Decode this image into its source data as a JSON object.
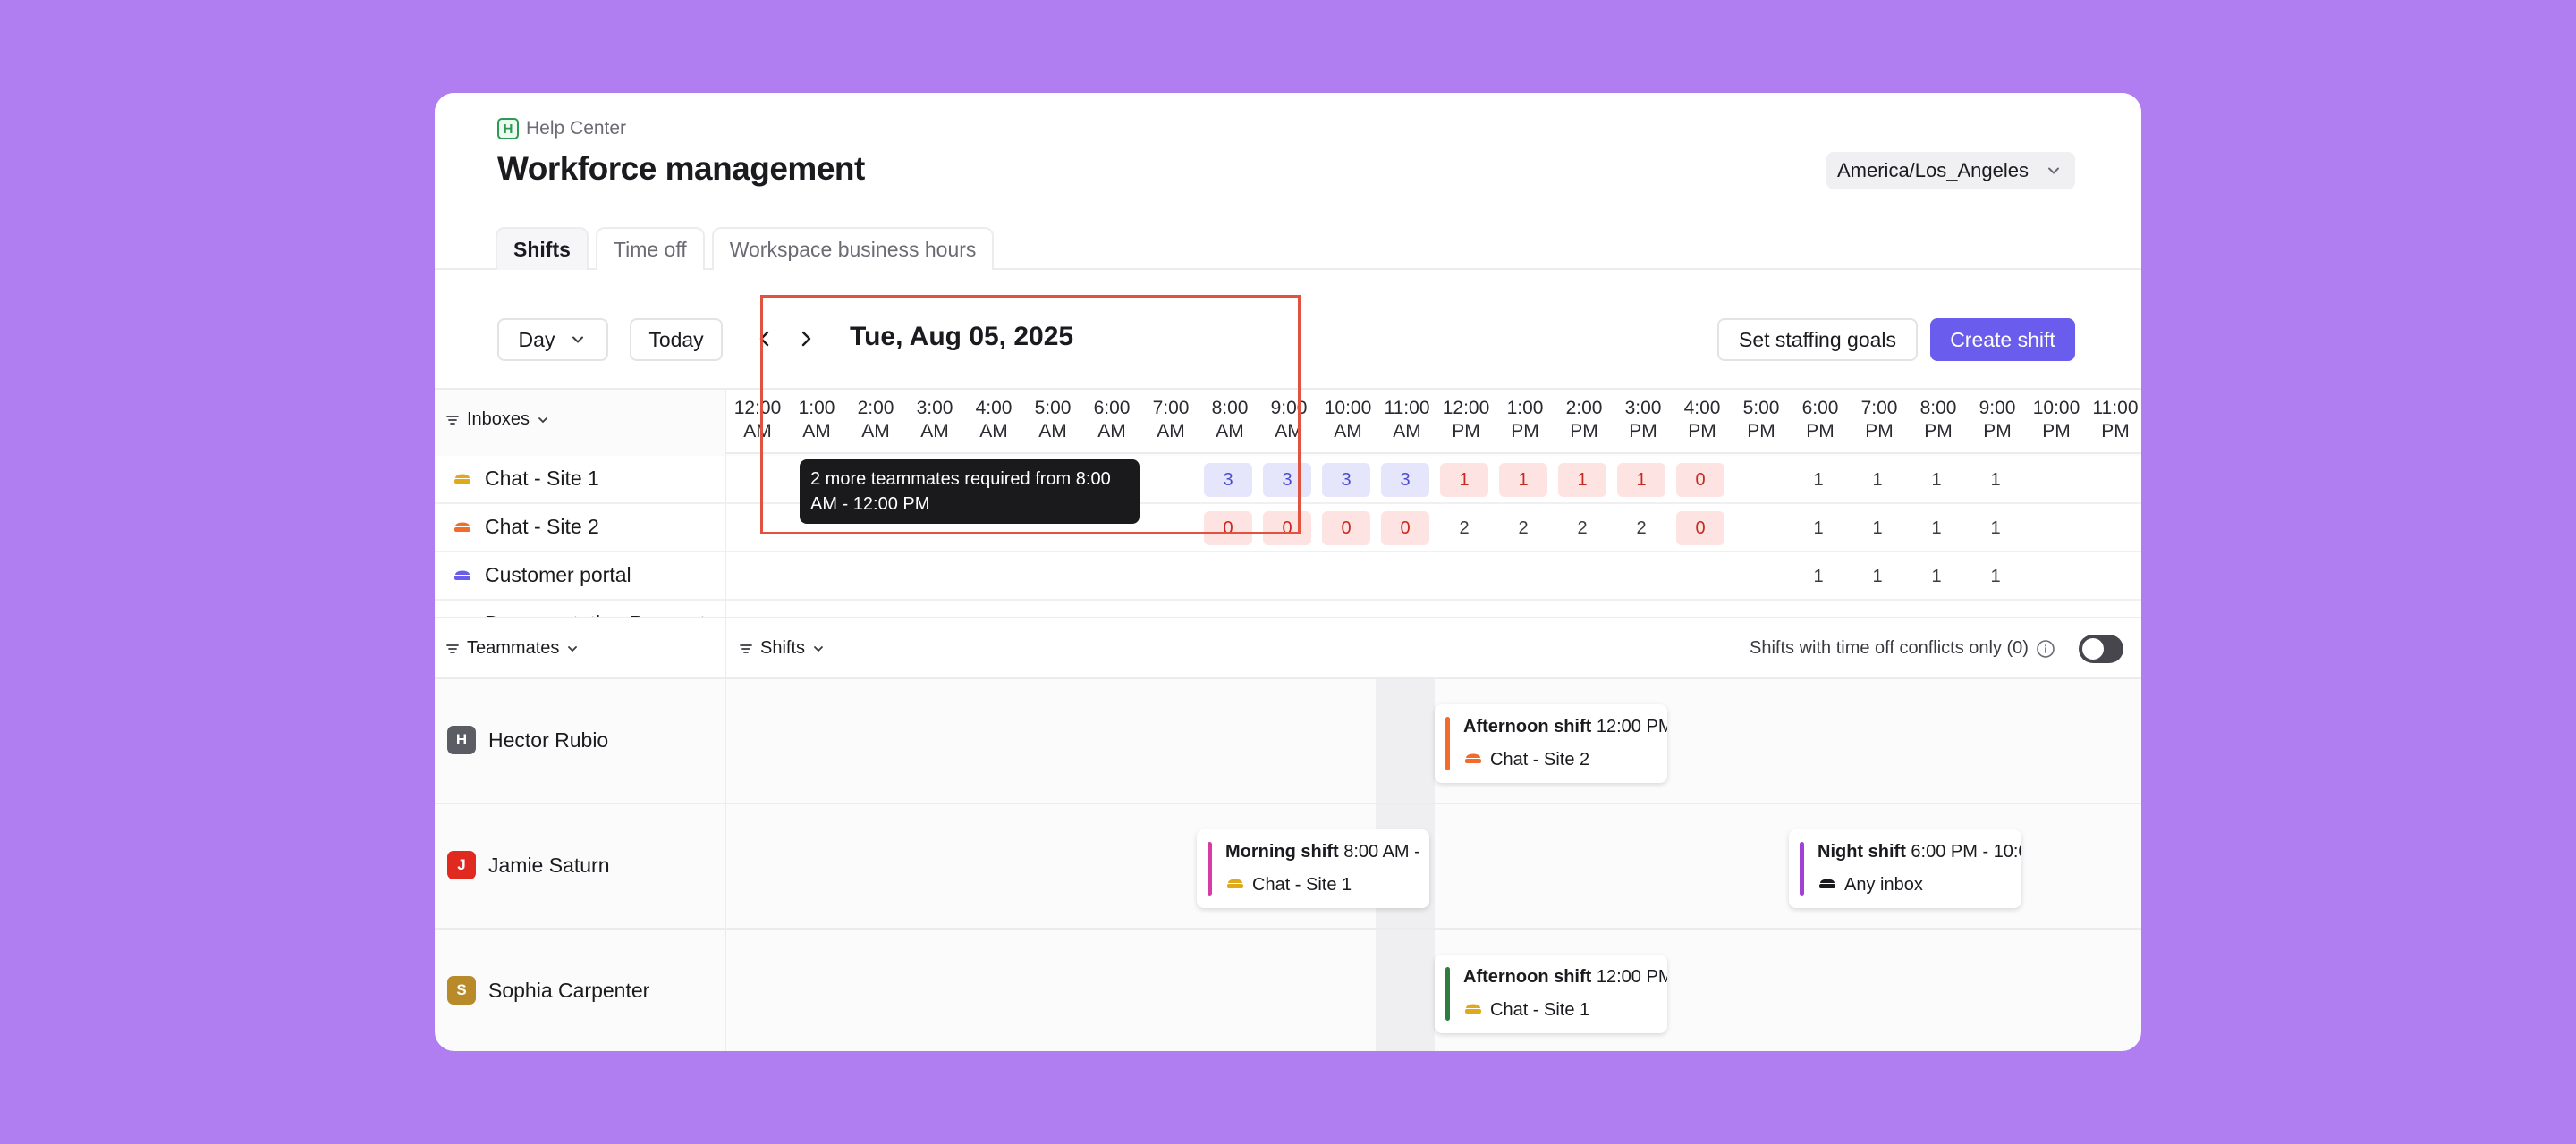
{
  "breadcrumb": {
    "logo": "H",
    "label": "Help Center"
  },
  "page": {
    "title": "Workforce management"
  },
  "timezone": {
    "value": "America/Los_Angeles"
  },
  "tabs": [
    {
      "label": "Shifts"
    },
    {
      "label": "Time off"
    },
    {
      "label": "Workspace business hours"
    }
  ],
  "toolbar": {
    "view": "Day",
    "today_label": "Today",
    "date": "Tue, Aug 05, 2025",
    "staffing_goals_label": "Set staffing goals",
    "create_shift_label": "Create shift"
  },
  "hours": [
    [
      "12:00",
      "AM"
    ],
    [
      "1:00",
      "AM"
    ],
    [
      "2:00",
      "AM"
    ],
    [
      "3:00",
      "AM"
    ],
    [
      "4:00",
      "AM"
    ],
    [
      "5:00",
      "AM"
    ],
    [
      "6:00",
      "AM"
    ],
    [
      "7:00",
      "AM"
    ],
    [
      "8:00",
      "AM"
    ],
    [
      "9:00",
      "AM"
    ],
    [
      "10:00",
      "AM"
    ],
    [
      "11:00",
      "AM"
    ],
    [
      "12:00",
      "PM"
    ],
    [
      "1:00",
      "PM"
    ],
    [
      "2:00",
      "PM"
    ],
    [
      "3:00",
      "PM"
    ],
    [
      "4:00",
      "PM"
    ],
    [
      "5:00",
      "PM"
    ],
    [
      "6:00",
      "PM"
    ],
    [
      "7:00",
      "PM"
    ],
    [
      "8:00",
      "PM"
    ],
    [
      "9:00",
      "PM"
    ],
    [
      "10:00",
      "PM"
    ],
    [
      "11:00",
      "PM"
    ]
  ],
  "inboxes_filter": "Inboxes",
  "inboxes": [
    {
      "name": "Chat - Site 1",
      "color": "#e0a91b",
      "cells": {
        "8": "3",
        "9": "3",
        "10": "3",
        "11": "3",
        "12": "1",
        "13": "1",
        "14": "1",
        "15": "1",
        "16": "0",
        "18": "1",
        "19": "1",
        "20": "1",
        "21": "1"
      }
    },
    {
      "name": "Chat - Site 2",
      "color": "#ef6c2b",
      "cells": {
        "8": "0",
        "9": "0",
        "10": "0",
        "11": "0",
        "12": "2",
        "13": "2",
        "14": "2",
        "15": "2",
        "16": "0",
        "18": "1",
        "19": "1",
        "20": "1",
        "21": "1"
      }
    },
    {
      "name": "Customer portal",
      "color": "#6a5ced",
      "cells": {
        "18": "1",
        "19": "1",
        "20": "1",
        "21": "1"
      }
    },
    {
      "name": "Documentation Request",
      "color": "#e0409a",
      "cells": {}
    }
  ],
  "tooltip": {
    "text": "2 more teammates required from 8:00 AM - 12:00 PM"
  },
  "teammates_filter": "Teammates",
  "shifts_filter": "Shifts",
  "conflicts_toggle": {
    "label": "Shifts with time off conflicts only (0)",
    "on": false
  },
  "teammates": [
    {
      "name": "Hector Rubio",
      "initial": "H",
      "avatar_color": "#5c5c64"
    },
    {
      "name": "Jamie Saturn",
      "initial": "J",
      "avatar_color": "#e02a1f"
    },
    {
      "name": "Sophia Carpenter",
      "initial": "S",
      "avatar_color": "#b98a2a"
    }
  ],
  "shifts": [
    {
      "title": "Afternoon shift",
      "time": "12:00 PM",
      "inbox": "Chat - Site 2",
      "bar_color": "#ef6c2b",
      "icon_color": "#ef6c2b"
    },
    {
      "title": "Morning shift",
      "time": "8:00 AM -",
      "inbox": "Chat - Site 1",
      "bar_color": "#d63ba6",
      "icon_color": "#e0a91b"
    },
    {
      "title": "Night shift",
      "time": "6:00 PM - 10:0",
      "inbox": "Any inbox",
      "bar_color": "#a13fd6",
      "icon_color": "#1b1b1f"
    },
    {
      "title": "Afternoon shift",
      "time": "12:00 PM",
      "inbox": "Chat - Site 1",
      "bar_color": "#2e7d3e",
      "icon_color": "#e0a91b"
    }
  ]
}
